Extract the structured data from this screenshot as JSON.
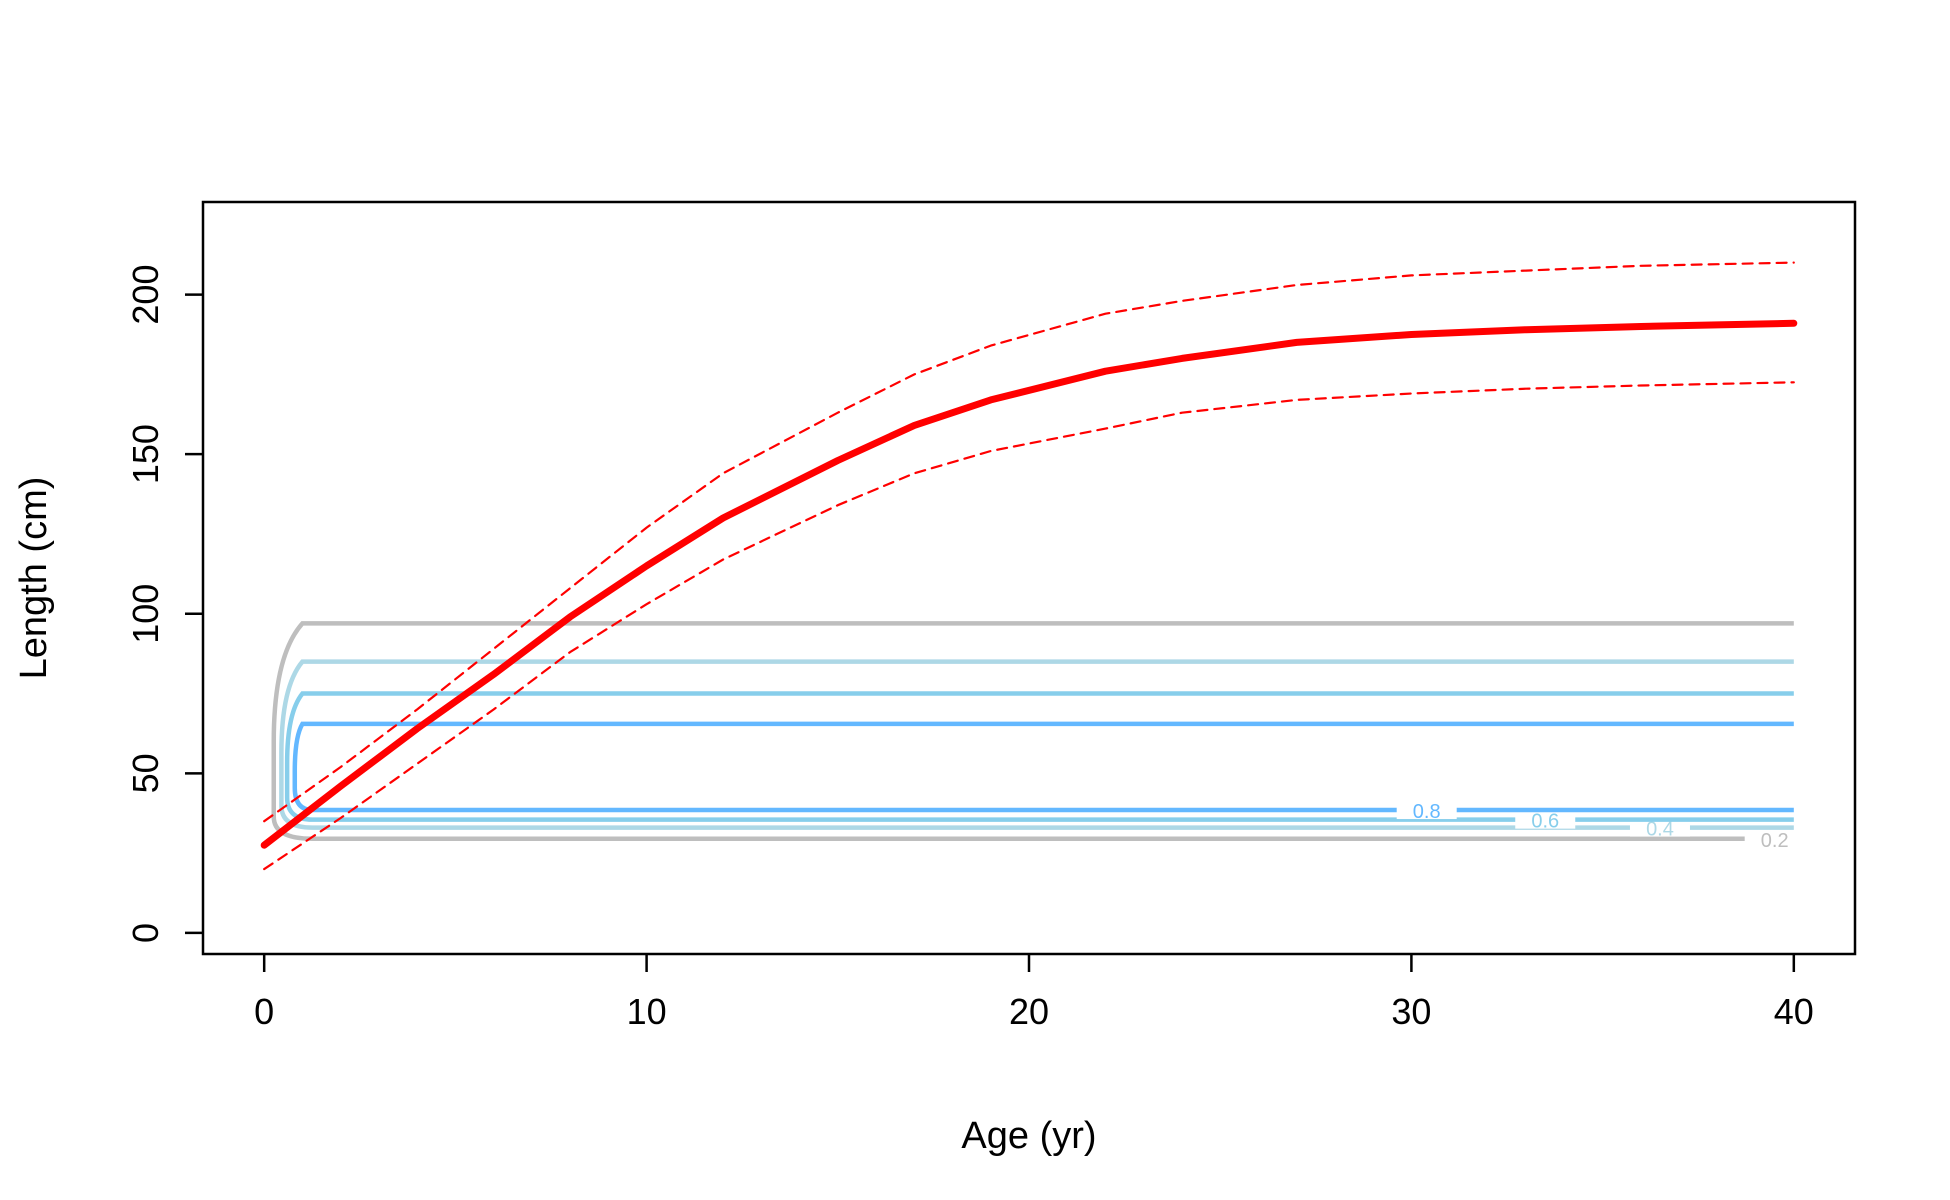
{
  "chart_data": {
    "type": "line",
    "title": "",
    "xlabel": "Age (yr)",
    "ylabel": "Length (cm)",
    "xlim": [
      -1.6,
      41.6
    ],
    "ylim": [
      -6.6,
      229
    ],
    "xticks": [
      0,
      10,
      20,
      30,
      40
    ],
    "yticks": [
      0,
      50,
      100,
      150,
      200
    ],
    "grid": false,
    "legend": "none",
    "series": [
      {
        "role": "mean",
        "color": "#ff0000",
        "style": "solid",
        "x": [
          0,
          2,
          4,
          6,
          8,
          10,
          12,
          15,
          17,
          19,
          22,
          24,
          27,
          30,
          33,
          36,
          38,
          40
        ],
        "y": [
          27.5,
          46,
          64,
          81,
          99,
          115,
          130,
          148,
          159,
          167,
          176,
          180,
          185,
          187.5,
          189,
          190,
          190.5,
          191
        ]
      },
      {
        "role": "upper",
        "color": "#ff0000",
        "style": "dashed",
        "x": [
          0,
          2,
          4,
          6,
          8,
          10,
          12,
          15,
          17,
          19,
          22,
          24,
          27,
          30,
          33,
          36,
          38,
          40
        ],
        "y": [
          35,
          52,
          70,
          89,
          108,
          127,
          144,
          163,
          175,
          184,
          194,
          198,
          203,
          206,
          207.5,
          209,
          209.5,
          210
        ]
      },
      {
        "role": "lower",
        "color": "#ff0000",
        "style": "dashed",
        "x": [
          0,
          2,
          4,
          6,
          8,
          10,
          12,
          15,
          17,
          19,
          22,
          24,
          27,
          30,
          33,
          36,
          38,
          40
        ],
        "y": [
          20,
          36,
          53,
          70,
          88,
          103,
          117,
          134,
          144,
          151,
          158,
          163,
          167,
          169,
          170.5,
          171.5,
          172,
          172.5
        ]
      }
    ],
    "contours": [
      {
        "level": 0.2,
        "label": "0.2",
        "color": "#bebebe",
        "y_top": 97,
        "y_bottom": 29.5,
        "x_left": 0.25
      },
      {
        "level": 0.4,
        "label": "0.4",
        "color": "#add8e6",
        "y_top": 85,
        "y_bottom": 33,
        "x_left": 0.45
      },
      {
        "level": 0.6,
        "label": "0.6",
        "color": "#87ceeb",
        "y_top": 75,
        "y_bottom": 35.5,
        "x_left": 0.6
      },
      {
        "level": 0.8,
        "label": "0.8",
        "color": "#63b8ff",
        "y_top": 65.5,
        "y_bottom": 38.5,
        "x_left": 0.8
      }
    ]
  }
}
